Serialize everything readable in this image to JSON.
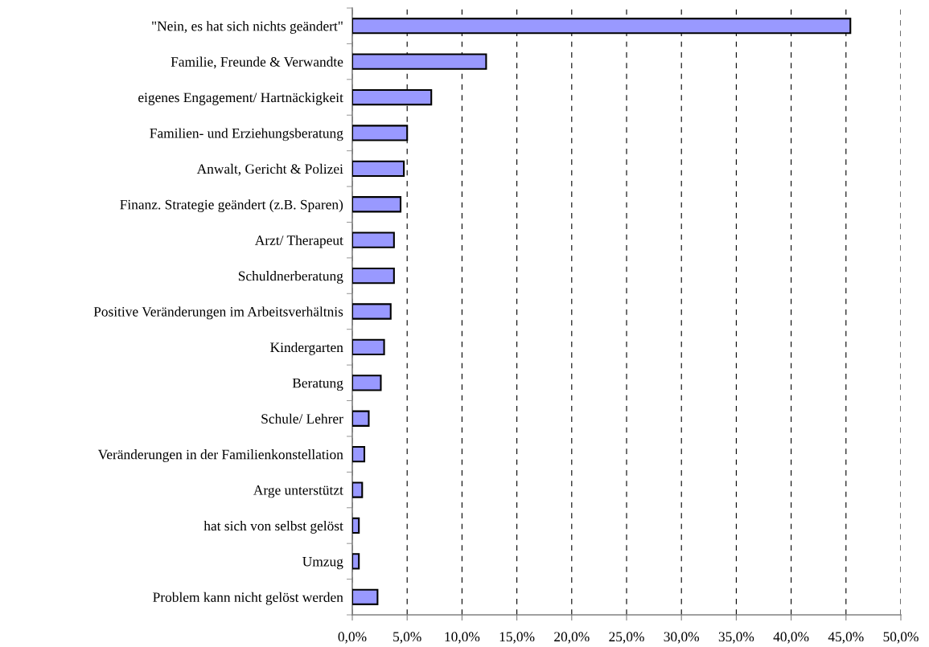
{
  "chart_data": {
    "type": "bar",
    "orientation": "horizontal",
    "categories": [
      "\"Nein, es hat sich nichts geändert\"",
      "Familie, Freunde & Verwandte",
      "eigenes Engagement/ Hartnäckigkeit",
      "Familien- und Erziehungsberatung",
      "Anwalt, Gericht & Polizei",
      "Finanz. Strategie geändert (z.B. Sparen)",
      "Arzt/ Therapeut",
      "Schuldnerberatung",
      "Positive Veränderungen im Arbeitsverhältnis",
      "Kindergarten",
      "Beratung",
      "Schule/ Lehrer",
      "Veränderungen in der Familienkonstellation",
      "Arge unterstützt",
      "hat sich von selbst gelöst",
      "Umzug",
      "Problem kann nicht gelöst werden"
    ],
    "values": [
      45.4,
      12.2,
      7.2,
      5.0,
      4.7,
      4.4,
      3.8,
      3.8,
      3.5,
      2.9,
      2.6,
      1.5,
      1.1,
      0.9,
      0.6,
      0.6,
      2.3
    ],
    "color": "#9999ff",
    "xlim": [
      0,
      50
    ],
    "xticks": [
      {
        "value": 0,
        "label": "0,0%"
      },
      {
        "value": 5,
        "label": "5,0%"
      },
      {
        "value": 10,
        "label": "10,0%"
      },
      {
        "value": 15,
        "label": "15,0%"
      },
      {
        "value": 20,
        "label": "20,0%"
      },
      {
        "value": 25,
        "label": "25,0%"
      },
      {
        "value": 30,
        "label": "30,0%"
      },
      {
        "value": 35,
        "label": "35,0%"
      },
      {
        "value": 40,
        "label": "40,0%"
      },
      {
        "value": 45,
        "label": "45,0%"
      },
      {
        "value": 50,
        "label": "50,0%"
      }
    ],
    "grid": "x",
    "legend": false
  }
}
